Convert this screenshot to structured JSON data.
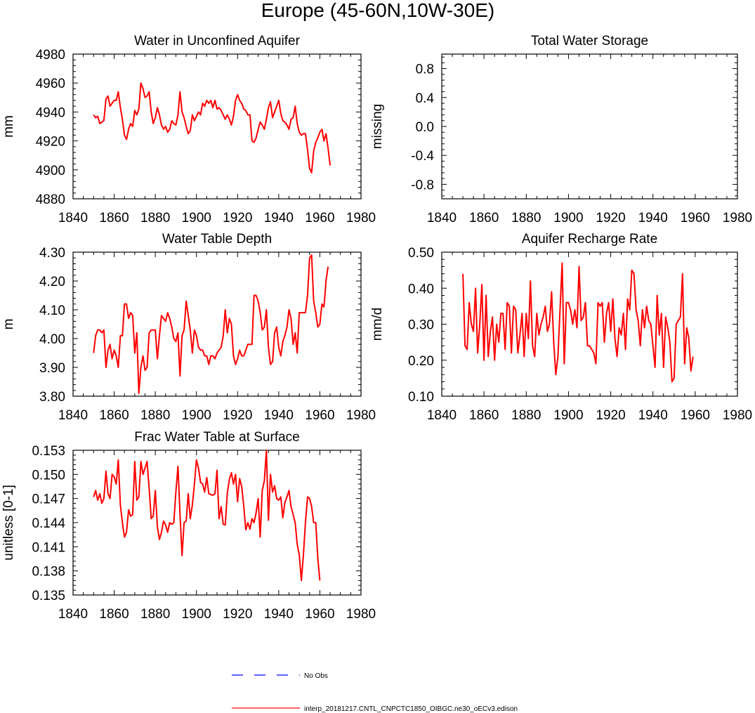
{
  "figure": {
    "title": "Europe (45-60N,10W-30E)",
    "legend": [
      {
        "label": "No Obs",
        "color": "#0000ff",
        "style": "dashed"
      },
      {
        "label": "interp_20181217.CNTL_CNPCTC1850_OIBGC.ne30_oECv3.edison",
        "color": "#ff0000",
        "style": "solid"
      }
    ]
  },
  "chart_data": [
    {
      "type": "line",
      "title": "Water in Unconfined Aquifer",
      "xlabel": "",
      "ylabel": "mm",
      "xlim": [
        1840,
        1980
      ],
      "ylim": [
        4880,
        4980
      ],
      "x_ticks": [
        1840,
        1860,
        1880,
        1900,
        1920,
        1940,
        1960,
        1980
      ],
      "y_ticks": [
        4880,
        4900,
        4920,
        4940,
        4960,
        4980
      ],
      "y_tick_labels": [
        "4880",
        "4900",
        "4920",
        "4940",
        "4960",
        "4980"
      ],
      "series": [
        {
          "name": "interp_20181217.CNTL_CNPCTC1850_OIBGC.ne30_oECv3.edison",
          "color": "#ff0000",
          "x_start": 1850,
          "x_step": 1,
          "values": [
            4938,
            4936,
            4937,
            4932,
            4933,
            4934,
            4949,
            4951,
            4944,
            4946,
            4948,
            4948,
            4954,
            4943,
            4935,
            4924,
            4921,
            4928,
            4932,
            4930,
            4941,
            4938,
            4942,
            4960,
            4956,
            4950,
            4951,
            4954,
            4940,
            4932,
            4936,
            4943,
            4938,
            4931,
            4928,
            4930,
            4926,
            4928,
            4934,
            4932,
            4931,
            4938,
            4954,
            4940,
            4936,
            4930,
            4925,
            4927,
            4938,
            4934,
            4937,
            4940,
            4938,
            4946,
            4944,
            4948,
            4946,
            4948,
            4943,
            4948,
            4942,
            4943,
            4941,
            4938,
            4935,
            4938,
            4935,
            4931,
            4937,
            4948,
            4952,
            4948,
            4946,
            4942,
            4941,
            4938,
            4938,
            4920,
            4919,
            4922,
            4928,
            4933,
            4931,
            4928,
            4935,
            4943,
            4947,
            4936,
            4940,
            4944,
            4948,
            4939,
            4934,
            4933,
            4931,
            4928,
            4935,
            4936,
            4944,
            4932,
            4926,
            4924,
            4925,
            4925,
            4914,
            4901,
            4898,
            4913,
            4919,
            4922,
            4926,
            4928,
            4920,
            4925,
            4915,
            4903
          ]
        }
      ]
    },
    {
      "type": "line",
      "title": "Total Water Storage",
      "xlabel": "",
      "ylabel": "missing",
      "xlim": [
        1840,
        1980
      ],
      "ylim": [
        -1,
        1
      ],
      "x_ticks": [
        1840,
        1860,
        1880,
        1900,
        1920,
        1940,
        1960,
        1980
      ],
      "y_ticks": [
        -0.8,
        -0.4,
        0.0,
        0.4,
        0.8
      ],
      "y_tick_labels": [
        "-0.8",
        "-0.4",
        "0.0",
        "0.4",
        "0.8"
      ],
      "series": []
    },
    {
      "type": "line",
      "title": "Water Table Depth",
      "xlabel": "",
      "ylabel": "m",
      "xlim": [
        1840,
        1980
      ],
      "ylim": [
        3.8,
        4.3
      ],
      "x_ticks": [
        1840,
        1860,
        1880,
        1900,
        1920,
        1940,
        1960,
        1980
      ],
      "y_ticks": [
        3.8,
        3.9,
        4.0,
        4.1,
        4.2,
        4.3
      ],
      "y_tick_labels": [
        "3.80",
        "3.90",
        "4.00",
        "4.10",
        "4.20",
        "4.30"
      ],
      "series": [
        {
          "name": "interp_20181217.CNTL_CNPCTC1850_OIBGC.ne30_oECv3.edison",
          "color": "#ff0000",
          "x_start": 1850,
          "x_step": 1,
          "values": [
            3.95,
            4.01,
            4.03,
            4.03,
            4.02,
            4.03,
            3.9,
            3.96,
            3.98,
            3.93,
            3.96,
            3.94,
            3.9,
            4.01,
            4.01,
            4.12,
            4.12,
            4.07,
            4.09,
            4.08,
            3.95,
            4.02,
            3.81,
            3.9,
            3.94,
            3.89,
            3.9,
            4.02,
            4.03,
            4.03,
            4.03,
            3.93,
            4.01,
            4.08,
            4.07,
            4.06,
            4.09,
            4.07,
            4.04,
            4.0,
            3.99,
            4.02,
            3.87,
            4.01,
            4.03,
            4.13,
            4.08,
            4.03,
            3.95,
            4.03,
            4.01,
            3.97,
            3.96,
            3.96,
            3.94,
            3.94,
            3.91,
            3.94,
            3.94,
            3.93,
            3.95,
            3.96,
            3.97,
            4.01,
            4.1,
            4.02,
            4.07,
            4.05,
            3.94,
            3.91,
            3.93,
            3.96,
            3.94,
            3.94,
            3.96,
            3.98,
            3.98,
            3.98,
            4.15,
            4.15,
            4.13,
            4.09,
            4.03,
            4.04,
            4.1,
            3.97,
            3.91,
            3.92,
            4.02,
            4.04,
            3.97,
            3.94,
            3.99,
            4.01,
            4.04,
            4.1,
            4.07,
            3.98,
            4.02,
            3.95,
            4.09,
            4.09,
            4.09,
            4.09,
            4.15,
            4.28,
            4.29,
            4.13,
            4.09,
            4.04,
            4.05,
            4.12,
            4.11,
            4.2,
            4.25
          ]
        }
      ]
    },
    {
      "type": "line",
      "title": "Aquifer Recharge Rate",
      "xlabel": "",
      "ylabel": "mm/d",
      "xlim": [
        1840,
        1980
      ],
      "ylim": [
        0.1,
        0.5
      ],
      "x_ticks": [
        1840,
        1860,
        1880,
        1900,
        1920,
        1940,
        1960,
        1980
      ],
      "y_ticks": [
        0.1,
        0.2,
        0.3,
        0.4,
        0.5
      ],
      "y_tick_labels": [
        "0.10",
        "0.20",
        "0.30",
        "0.40",
        "0.50"
      ],
      "series": [
        {
          "name": "interp_20181217.CNTL_CNPCTC1850_OIBGC.ne30_oECv3.edison",
          "color": "#ff0000",
          "x_start": 1850,
          "x_step": 1,
          "values": [
            0.44,
            0.24,
            0.23,
            0.36,
            0.3,
            0.28,
            0.4,
            0.22,
            0.3,
            0.41,
            0.2,
            0.38,
            0.21,
            0.28,
            0.32,
            0.2,
            0.3,
            0.25,
            0.33,
            0.33,
            0.23,
            0.36,
            0.35,
            0.22,
            0.35,
            0.34,
            0.22,
            0.27,
            0.33,
            0.21,
            0.33,
            0.26,
            0.42,
            0.24,
            0.21,
            0.33,
            0.27,
            0.3,
            0.32,
            0.35,
            0.28,
            0.3,
            0.39,
            0.25,
            0.16,
            0.21,
            0.34,
            0.47,
            0.19,
            0.36,
            0.36,
            0.34,
            0.3,
            0.34,
            0.29,
            0.46,
            0.31,
            0.32,
            0.36,
            0.24,
            0.24,
            0.23,
            0.22,
            0.19,
            0.36,
            0.35,
            0.36,
            0.25,
            0.33,
            0.36,
            0.28,
            0.37,
            0.26,
            0.21,
            0.29,
            0.27,
            0.33,
            0.23,
            0.37,
            0.34,
            0.45,
            0.44,
            0.34,
            0.31,
            0.24,
            0.34,
            0.29,
            0.35,
            0.31,
            0.3,
            0.24,
            0.18,
            0.38,
            0.27,
            0.33,
            0.18,
            0.32,
            0.29,
            0.25,
            0.14,
            0.15,
            0.3,
            0.31,
            0.32,
            0.44,
            0.19,
            0.29,
            0.26,
            0.17,
            0.21
          ]
        }
      ]
    },
    {
      "type": "line",
      "title": "Frac Water Table at Surface",
      "xlabel": "",
      "ylabel": "unitless [0-1]",
      "xlim": [
        1840,
        1980
      ],
      "ylim": [
        0.135,
        0.153
      ],
      "x_ticks": [
        1840,
        1860,
        1880,
        1900,
        1920,
        1940,
        1960,
        1980
      ],
      "y_ticks": [
        0.135,
        0.138,
        0.141,
        0.144,
        0.147,
        0.15,
        0.153
      ],
      "y_tick_labels": [
        "0.135",
        "0.138",
        "0.141",
        "0.144",
        "0.147",
        "0.150",
        "0.153"
      ],
      "series": [
        {
          "name": "interp_20181217.CNTL_CNPCTC1850_OIBGC.ne30_oECv3.edison",
          "color": "#ff0000",
          "x_start": 1850,
          "x_step": 1,
          "values": [
            0.1472,
            0.148,
            0.1468,
            0.1476,
            0.1464,
            0.147,
            0.1504,
            0.1476,
            0.147,
            0.15,
            0.1497,
            0.1488,
            0.1518,
            0.1462,
            0.144,
            0.1422,
            0.1428,
            0.1456,
            0.1448,
            0.145,
            0.1516,
            0.1468,
            0.1472,
            0.1516,
            0.15,
            0.1508,
            0.1516,
            0.1482,
            0.1445,
            0.1448,
            0.148,
            0.1435,
            0.1419,
            0.1428,
            0.1442,
            0.1437,
            0.1428,
            0.144,
            0.1438,
            0.144,
            0.1478,
            0.151,
            0.145,
            0.1399,
            0.144,
            0.1442,
            0.1476,
            0.1445,
            0.1462,
            0.1488,
            0.1518,
            0.1508,
            0.149,
            0.1488,
            0.1478,
            0.1496,
            0.1476,
            0.1475,
            0.1474,
            0.1476,
            0.1505,
            0.1445,
            0.146,
            0.1438,
            0.1437,
            0.1476,
            0.1494,
            0.1502,
            0.1488,
            0.15,
            0.1466,
            0.1495,
            0.1485,
            0.146,
            0.1431,
            0.144,
            0.1432,
            0.1445,
            0.144,
            0.1452,
            0.147,
            0.1422,
            0.148,
            0.1492,
            0.153,
            0.1443,
            0.15,
            0.1478,
            0.1486,
            0.147,
            0.1468,
            0.1472,
            0.1446,
            0.1465,
            0.1472,
            0.148,
            0.146,
            0.145,
            0.144,
            0.1413,
            0.14,
            0.1368,
            0.14,
            0.144,
            0.1472,
            0.147,
            0.146,
            0.144,
            0.144,
            0.1396,
            0.1368
          ]
        }
      ]
    }
  ]
}
